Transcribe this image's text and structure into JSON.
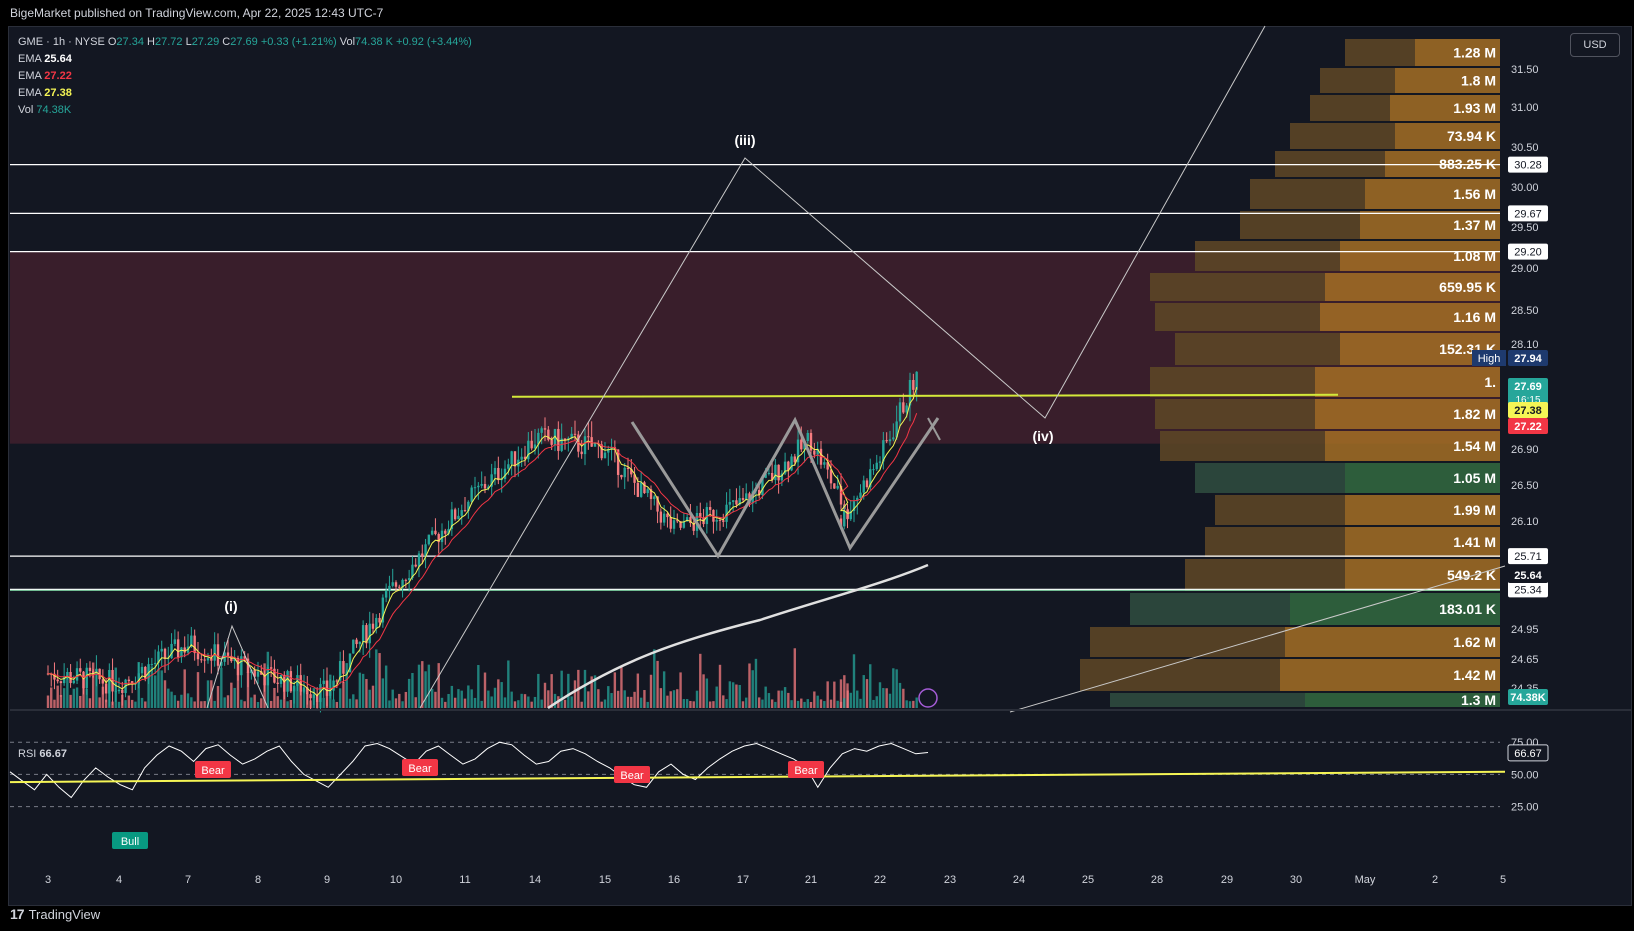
{
  "header": {
    "publisher": "BigeMarket published on TradingView.com, Apr 22, 2025 12:43 UTC-7"
  },
  "legend": {
    "symbol": "GME · 1h · NYSE",
    "o_label": "O",
    "o": "27.34",
    "h_label": "H",
    "h": "27.72",
    "l_label": "L",
    "l": "27.29",
    "c_label": "C",
    "c": "27.69",
    "chg": "+0.33 (+1.21%)",
    "vol_label": "Vol",
    "vol": "74.38 K",
    "vol_chg": "+0.92 (+3.44%)",
    "ema_rows": [
      {
        "label": "EMA",
        "value": "25.64",
        "color": "#ffffff"
      },
      {
        "label": "EMA",
        "value": "27.22",
        "color": "#f23645"
      },
      {
        "label": "EMA",
        "value": "27.38",
        "color": "#f5f555"
      }
    ],
    "vol_row": {
      "label": "Vol",
      "value": "74.38K"
    }
  },
  "currency": "USD",
  "rsi_legend": {
    "label": "RSI",
    "value": "66.67"
  },
  "footer": {
    "brand": "TradingView"
  },
  "chart_data": {
    "type": "candlestick",
    "symbol": "GME",
    "interval": "1h",
    "ylim": [
      24.2,
      32.0
    ],
    "price_ticks": [
      "31.50",
      "31.00",
      "30.50",
      "30.00",
      "29.50",
      "29.00",
      "28.50",
      "28.10",
      "27.50",
      "26.90",
      "26.50",
      "26.10",
      "25.30",
      "24.95",
      "24.65",
      "24.35"
    ],
    "x_ticks": [
      "3",
      "4",
      "7",
      "8",
      "9",
      "10",
      "11",
      "14",
      "15",
      "16",
      "17",
      "21",
      "22",
      "23",
      "24",
      "25",
      "28",
      "29",
      "30",
      "May",
      "2",
      "5"
    ],
    "price_path_points": [
      {
        "x": "3",
        "y": 24.5
      },
      {
        "x": "4",
        "y": 24.4
      },
      {
        "x": "7",
        "y": 24.8
      },
      {
        "x": "8",
        "y": 24.5
      },
      {
        "x": "9",
        "y": 24.3
      },
      {
        "x": "10",
        "y": 25.4
      },
      {
        "x": "11",
        "y": 26.3
      },
      {
        "x": "14",
        "y": 27.0
      },
      {
        "x": "15",
        "y": 26.9
      },
      {
        "x": "16",
        "y": 26.0
      },
      {
        "x": "17",
        "y": 26.3
      },
      {
        "x": "21",
        "y": 27.0
      },
      {
        "x": "21",
        "y": 26.1
      },
      {
        "x": "22",
        "y": 26.8
      },
      {
        "x": "22",
        "y": 27.69
      }
    ],
    "horizontal_lines": [
      {
        "price": 30.28,
        "label": "30.28"
      },
      {
        "price": 29.67,
        "label": "29.67"
      },
      {
        "price": 29.2,
        "label": "29.20"
      },
      {
        "price": 25.71,
        "label": "25.71"
      },
      {
        "price": 25.34,
        "label": "25.34"
      }
    ],
    "neckline": 27.38,
    "price_badges": [
      {
        "text": "High",
        "value": "27.94",
        "color": "#1e3a6e"
      },
      {
        "value": "27.69",
        "sub": "16:15",
        "color": "#26a69a"
      },
      {
        "value": "27.38",
        "color": "#f5f555"
      },
      {
        "value": "27.22",
        "color": "#f23645"
      },
      {
        "value": "25.64",
        "color": "#131722"
      },
      {
        "value": "74.38K",
        "color": "#26a69a"
      }
    ],
    "volume_profile_labels": [
      "1.28 M",
      "1.8 M",
      "1.93 M",
      "73.94 K",
      "883.25 K",
      "1.56 M",
      "1.37 M",
      "1.08 M",
      "659.95 K",
      "1.16 M",
      "152.31 K",
      "1.",
      "1.82 M",
      "1.54 M",
      "1.05 M",
      "1.99 M",
      "1.41 M",
      "549.2 K",
      "183.01 K",
      "1.62 M",
      "1.42 M",
      "1.3 M"
    ],
    "wave_labels": [
      "(i)",
      "(iii)",
      "(iv)"
    ],
    "rsi": {
      "value": 66.67,
      "ticks": [
        "75.00",
        "50.00",
        "25.00"
      ],
      "values": [
        52,
        45,
        38,
        50,
        40,
        32,
        45,
        55,
        48,
        42,
        38,
        55,
        65,
        72,
        68,
        60,
        70,
        73,
        65,
        58,
        62,
        68,
        72,
        60,
        50,
        45,
        40,
        50,
        60,
        72,
        74,
        70,
        64,
        58,
        68,
        72,
        65,
        58,
        62,
        70,
        75,
        73,
        65,
        58,
        60,
        68,
        70,
        66,
        60,
        55,
        48,
        42,
        40,
        52,
        58,
        50,
        46,
        55,
        62,
        68,
        72,
        74,
        70,
        66,
        62,
        56,
        40,
        55,
        66,
        70,
        68,
        72,
        74,
        70,
        66,
        67
      ],
      "divergence_labels": [
        "Bear",
        "Bear",
        "Bear",
        "Bear",
        "Bull"
      ]
    }
  }
}
